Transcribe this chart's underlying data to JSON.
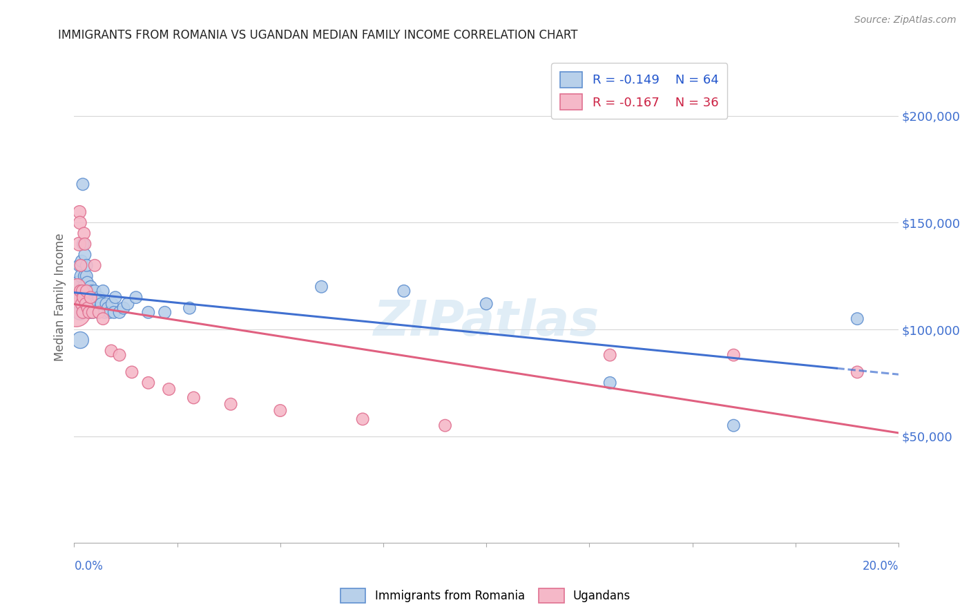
{
  "title": "IMMIGRANTS FROM ROMANIA VS UGANDAN MEDIAN FAMILY INCOME CORRELATION CHART",
  "source": "Source: ZipAtlas.com",
  "ylabel": "Median Family Income",
  "ytick_labels": [
    "$50,000",
    "$100,000",
    "$150,000",
    "$200,000"
  ],
  "ytick_values": [
    50000,
    100000,
    150000,
    200000
  ],
  "legend_blue_r": "-0.149",
  "legend_blue_n": "64",
  "legend_pink_r": "-0.167",
  "legend_pink_n": "36",
  "legend_label_blue": "Immigrants from Romania",
  "legend_label_pink": "Ugandans",
  "blue_fill": "#b8d0ea",
  "pink_fill": "#f5b8c8",
  "blue_edge": "#6090d0",
  "pink_edge": "#e07090",
  "blue_line_color": "#4070d0",
  "pink_line_color": "#e06080",
  "blue_r_color": "#2255cc",
  "pink_r_color": "#cc2244",
  "watermark": "ZIPatlas",
  "xmin": 0.0,
  "xmax": 0.2,
  "ymin": 0,
  "ymax": 230000,
  "blue_x": [
    0.0008,
    0.001,
    0.0012,
    0.0014,
    0.0015,
    0.0015,
    0.0017,
    0.0018,
    0.0019,
    0.002,
    0.0021,
    0.0022,
    0.0023,
    0.0024,
    0.0025,
    0.0025,
    0.0026,
    0.0027,
    0.0028,
    0.003,
    0.003,
    0.0031,
    0.0032,
    0.0033,
    0.0034,
    0.0035,
    0.0036,
    0.0037,
    0.0038,
    0.0039,
    0.004,
    0.0041,
    0.0043,
    0.0045,
    0.0047,
    0.0048,
    0.005,
    0.0052,
    0.0055,
    0.0058,
    0.006,
    0.0063,
    0.0066,
    0.007,
    0.0074,
    0.0078,
    0.0082,
    0.0087,
    0.0092,
    0.0097,
    0.01,
    0.011,
    0.012,
    0.013,
    0.015,
    0.018,
    0.022,
    0.028,
    0.06,
    0.08,
    0.1,
    0.13,
    0.16,
    0.19
  ],
  "blue_y": [
    118000,
    122000,
    130000,
    108000,
    115000,
    95000,
    125000,
    132000,
    112000,
    110000,
    168000,
    140000,
    120000,
    115000,
    125000,
    108000,
    135000,
    118000,
    112000,
    125000,
    130000,
    118000,
    122000,
    112000,
    108000,
    118000,
    115000,
    110000,
    108000,
    115000,
    120000,
    112000,
    118000,
    108000,
    115000,
    112000,
    118000,
    110000,
    112000,
    108000,
    115000,
    110000,
    112000,
    118000,
    108000,
    112000,
    110000,
    108000,
    112000,
    108000,
    115000,
    108000,
    110000,
    112000,
    115000,
    108000,
    108000,
    110000,
    120000,
    118000,
    112000,
    75000,
    55000,
    105000
  ],
  "blue_sizes": [
    200,
    180,
    160,
    250,
    220,
    300,
    180,
    160,
    180,
    170,
    160,
    160,
    160,
    160,
    160,
    160,
    160,
    160,
    160,
    160,
    160,
    160,
    160,
    160,
    160,
    160,
    160,
    160,
    160,
    160,
    160,
    160,
    160,
    160,
    160,
    160,
    160,
    160,
    160,
    160,
    160,
    160,
    160,
    160,
    160,
    160,
    160,
    160,
    160,
    160,
    160,
    160,
    160,
    160,
    160,
    160,
    160,
    160,
    160,
    160,
    160,
    160,
    160,
    160
  ],
  "pink_x": [
    0.0005,
    0.0008,
    0.001,
    0.0012,
    0.0013,
    0.0014,
    0.0015,
    0.0016,
    0.0018,
    0.002,
    0.0021,
    0.0022,
    0.0024,
    0.0026,
    0.0028,
    0.003,
    0.0033,
    0.0036,
    0.004,
    0.0045,
    0.005,
    0.006,
    0.007,
    0.009,
    0.011,
    0.014,
    0.018,
    0.023,
    0.029,
    0.038,
    0.05,
    0.07,
    0.09,
    0.13,
    0.16,
    0.19
  ],
  "pink_y": [
    108000,
    120000,
    115000,
    140000,
    155000,
    150000,
    118000,
    130000,
    112000,
    118000,
    108000,
    115000,
    145000,
    140000,
    112000,
    118000,
    110000,
    108000,
    115000,
    108000,
    130000,
    108000,
    105000,
    90000,
    88000,
    80000,
    75000,
    72000,
    68000,
    65000,
    62000,
    58000,
    55000,
    88000,
    88000,
    80000
  ],
  "pink_sizes": [
    900,
    280,
    240,
    200,
    180,
    180,
    160,
    160,
    160,
    160,
    160,
    160,
    160,
    160,
    160,
    160,
    160,
    160,
    160,
    160,
    160,
    160,
    160,
    160,
    160,
    160,
    160,
    160,
    160,
    160,
    160,
    160,
    160,
    160,
    160,
    160
  ]
}
